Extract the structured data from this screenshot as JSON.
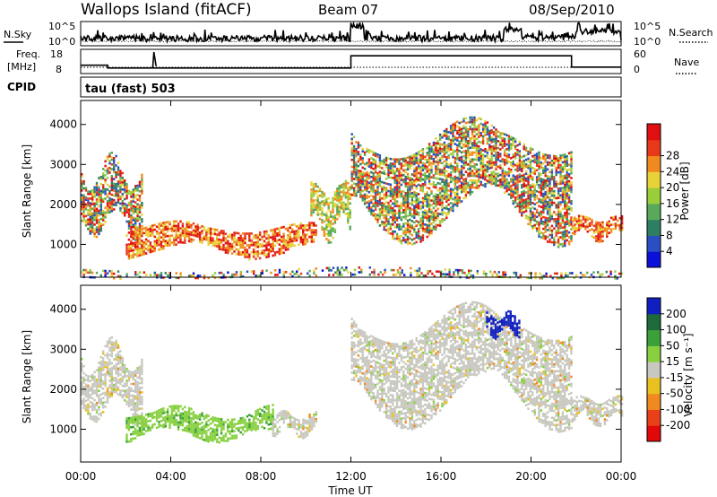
{
  "header": {
    "station": "Wallops Island (fitACF)",
    "beam": "Beam 07",
    "date": "08/Sep/2010"
  },
  "noise_panel": {
    "left_label": "N.Sky",
    "right_label": "N.Search",
    "left_ticks": [
      "10^5",
      "10^0"
    ],
    "right_ticks": [
      "10^5",
      "10^0"
    ]
  },
  "freq_panel": {
    "left_label_1": "Freq.",
    "left_label_2": "[MHz]",
    "right_label": "Nave",
    "left_ticks": [
      "18",
      "8"
    ],
    "right_ticks": [
      "60",
      "0"
    ]
  },
  "cpid": {
    "label": "CPID",
    "value": "tau (fast) 503"
  },
  "power_panel": {
    "ylabel": "Slant Range [km]",
    "yticks": [
      "1000",
      "2000",
      "3000",
      "4000"
    ],
    "colorbar_label": "Power [dB]",
    "colorbar_ticks": [
      "4",
      "8",
      "12",
      "16",
      "20",
      "24",
      "28"
    ],
    "colors": [
      "#0a10d8",
      "#2a4fc2",
      "#2e7f61",
      "#5aa85a",
      "#9acd3a",
      "#e8d23a",
      "#f08a1e",
      "#e8381a",
      "#e01010"
    ]
  },
  "velocity_panel": {
    "ylabel": "Slant Range [km]",
    "yticks": [
      "1000",
      "2000",
      "3000",
      "4000"
    ],
    "colorbar_label": "Velocity [m s⁻¹]",
    "colorbar_ticks": [
      "200",
      "100",
      "50",
      "15",
      "-15",
      "-50",
      "-100",
      "-200"
    ],
    "colors": [
      "#1020c0",
      "#1f6a3a",
      "#3aa03a",
      "#88d040",
      "#c8c8c0",
      "#e8c020",
      "#f08a1e",
      "#e84018",
      "#e00808"
    ]
  },
  "xaxis": {
    "label": "Time UT",
    "ticks": [
      "00:00",
      "04:00",
      "08:00",
      "12:00",
      "16:00",
      "20:00",
      "00:00"
    ]
  },
  "chart_data": {
    "type": "heatmap",
    "title": "Wallops Island (fitACF) Beam 07 08/Sep/2010",
    "xlabel": "Time UT",
    "ylabel": "Slant Range [km]",
    "xlim_hours": [
      0,
      24
    ],
    "ylim_km": [
      180,
      4600
    ],
    "noise_sky_segments_hours": [
      [
        0,
        12,
        0.3
      ],
      [
        12,
        12.6,
        0.8
      ],
      [
        12.6,
        18.8,
        0.3
      ],
      [
        18.8,
        19.6,
        0.7
      ],
      [
        19.6,
        22,
        0.35
      ],
      [
        22,
        24,
        0.6
      ]
    ],
    "nave_freq_step_hours": [
      [
        0,
        1.2,
        11
      ],
      [
        1.2,
        5.1,
        9.5
      ],
      [
        5.1,
        12,
        9.5
      ],
      [
        12,
        21.8,
        16
      ],
      [
        21.8,
        24,
        10
      ]
    ],
    "power_regions": [
      {
        "t0": 0.0,
        "t1": 2.7,
        "r0": 1400,
        "r1": 3000,
        "level": "mixed-high"
      },
      {
        "t0": 2.0,
        "t1": 10.5,
        "r0": 800,
        "r1": 1500,
        "level": "high"
      },
      {
        "t0": 10.2,
        "t1": 12.0,
        "r0": 1300,
        "r1": 2500,
        "level": "mid"
      },
      {
        "t0": 12.0,
        "t1": 21.8,
        "r0": 1500,
        "r1": 3900,
        "level": "mixed"
      },
      {
        "t0": 21.8,
        "t1": 24.0,
        "r0": 1200,
        "r1": 1700,
        "level": "high"
      },
      {
        "t0": 0.0,
        "t1": 24.0,
        "r0": 180,
        "r1": 400,
        "level": "ground-scatter"
      }
    ],
    "velocity_regions": [
      {
        "t0": 0.0,
        "t1": 2.7,
        "r0": 1400,
        "r1": 3000,
        "band": "-15 to 15"
      },
      {
        "t0": 2.0,
        "t1": 8.5,
        "r0": 800,
        "r1": 1500,
        "band": "15 to 50"
      },
      {
        "t0": 8.5,
        "t1": 10.5,
        "r0": 900,
        "r1": 1400,
        "band": "-15 to 15"
      },
      {
        "t0": 12.0,
        "t1": 21.8,
        "r0": 1500,
        "r1": 3900,
        "band": "-15 to 15"
      },
      {
        "t0": 18.0,
        "t1": 19.5,
        "r0": 3400,
        "r1": 3900,
        "band": "100 to 200"
      },
      {
        "t0": 21.8,
        "t1": 24.0,
        "r0": 1200,
        "r1": 1800,
        "band": "-15 to 15"
      }
    ]
  }
}
